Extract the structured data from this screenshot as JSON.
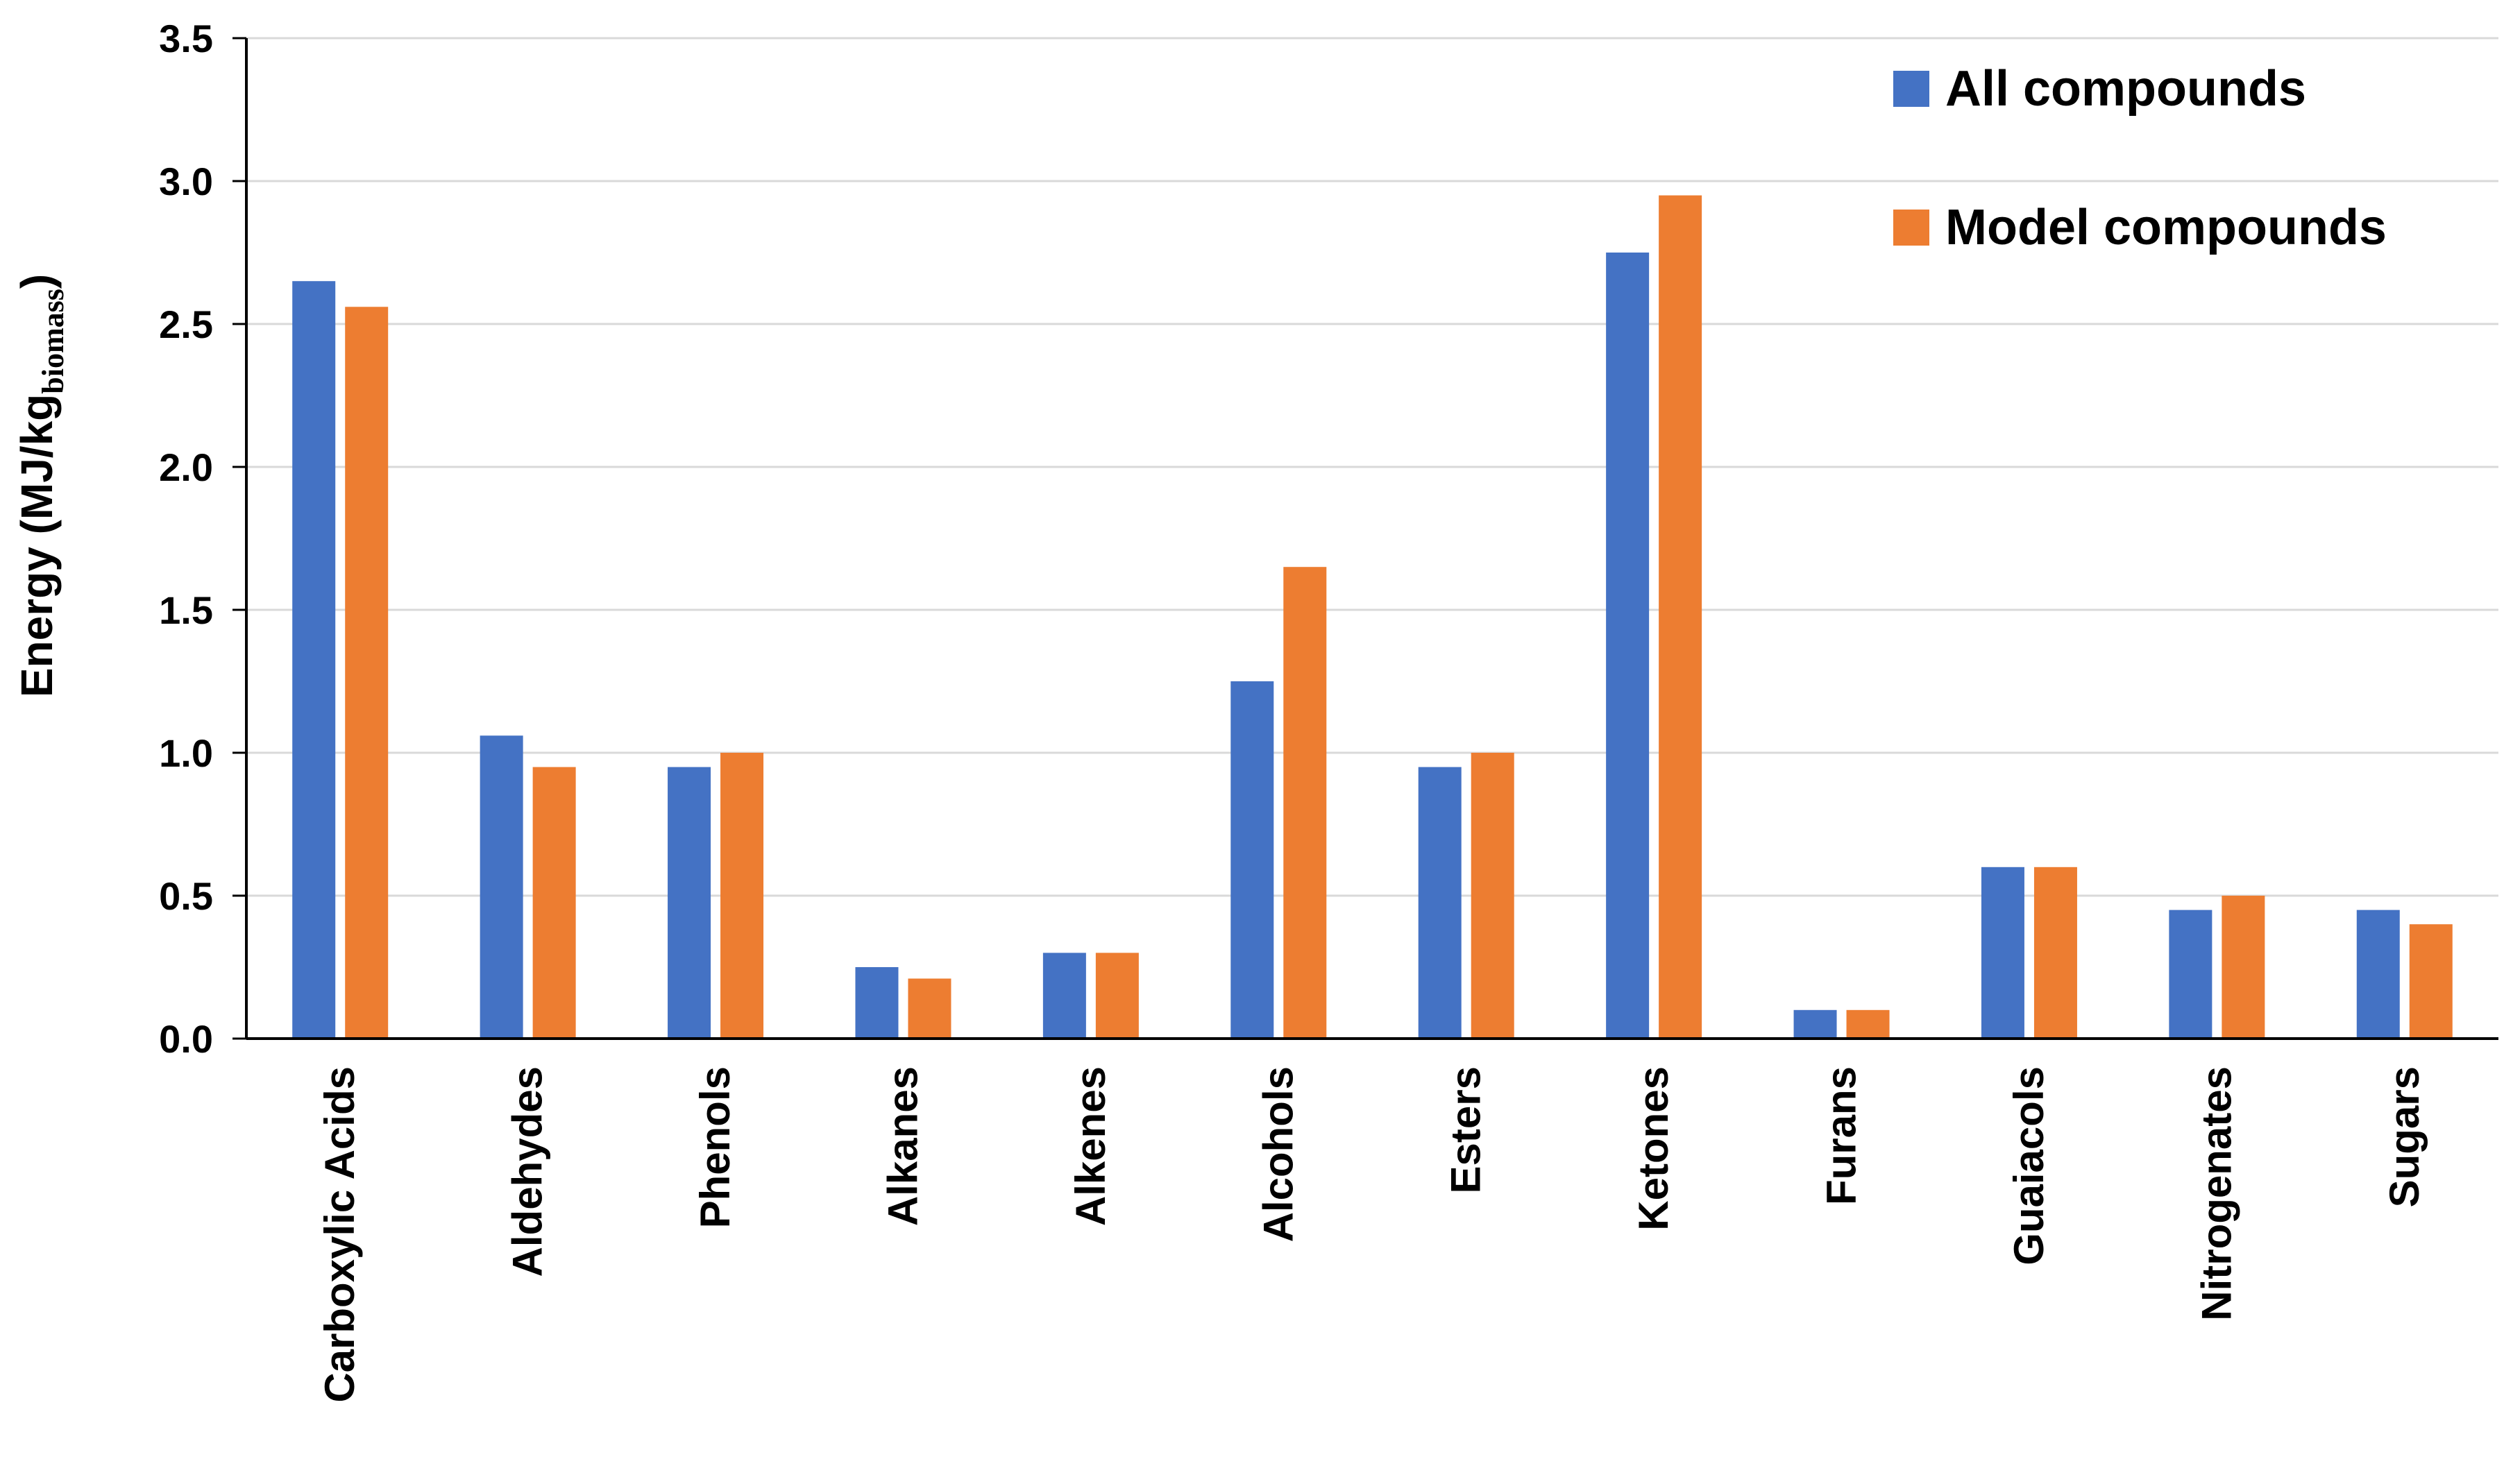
{
  "chart_data": {
    "type": "bar",
    "title": "",
    "xlabel": "",
    "ylabel": "Energy (MJ/kg",
    "ylabel_subscript": "biomass",
    "ylabel_close": ")",
    "ylim": [
      0,
      3.5
    ],
    "yticks": [
      "0.0",
      "0.5",
      "1.0",
      "1.5",
      "2.0",
      "2.5",
      "3.0",
      "3.5"
    ],
    "grid": true,
    "legend_position": "top-right",
    "categories": [
      "Carboxylic Acids",
      "Aldehydes",
      "Phenols",
      "Alkanes",
      "Alkenes",
      "Alcohols",
      "Esters",
      "Ketones",
      "Furans",
      "Guaiacols",
      "Nitrogenates",
      "Sugars"
    ],
    "series": [
      {
        "name": "All compounds",
        "color": "#4472C4",
        "values": [
          2.65,
          1.06,
          0.95,
          0.25,
          0.3,
          1.25,
          0.95,
          2.75,
          0.1,
          0.6,
          0.45,
          0.45
        ]
      },
      {
        "name": "Model compounds",
        "color": "#ED7D31",
        "values": [
          2.56,
          0.95,
          1.0,
          0.21,
          0.3,
          1.65,
          1.0,
          2.95,
          0.1,
          0.6,
          0.5,
          0.4
        ]
      }
    ]
  }
}
